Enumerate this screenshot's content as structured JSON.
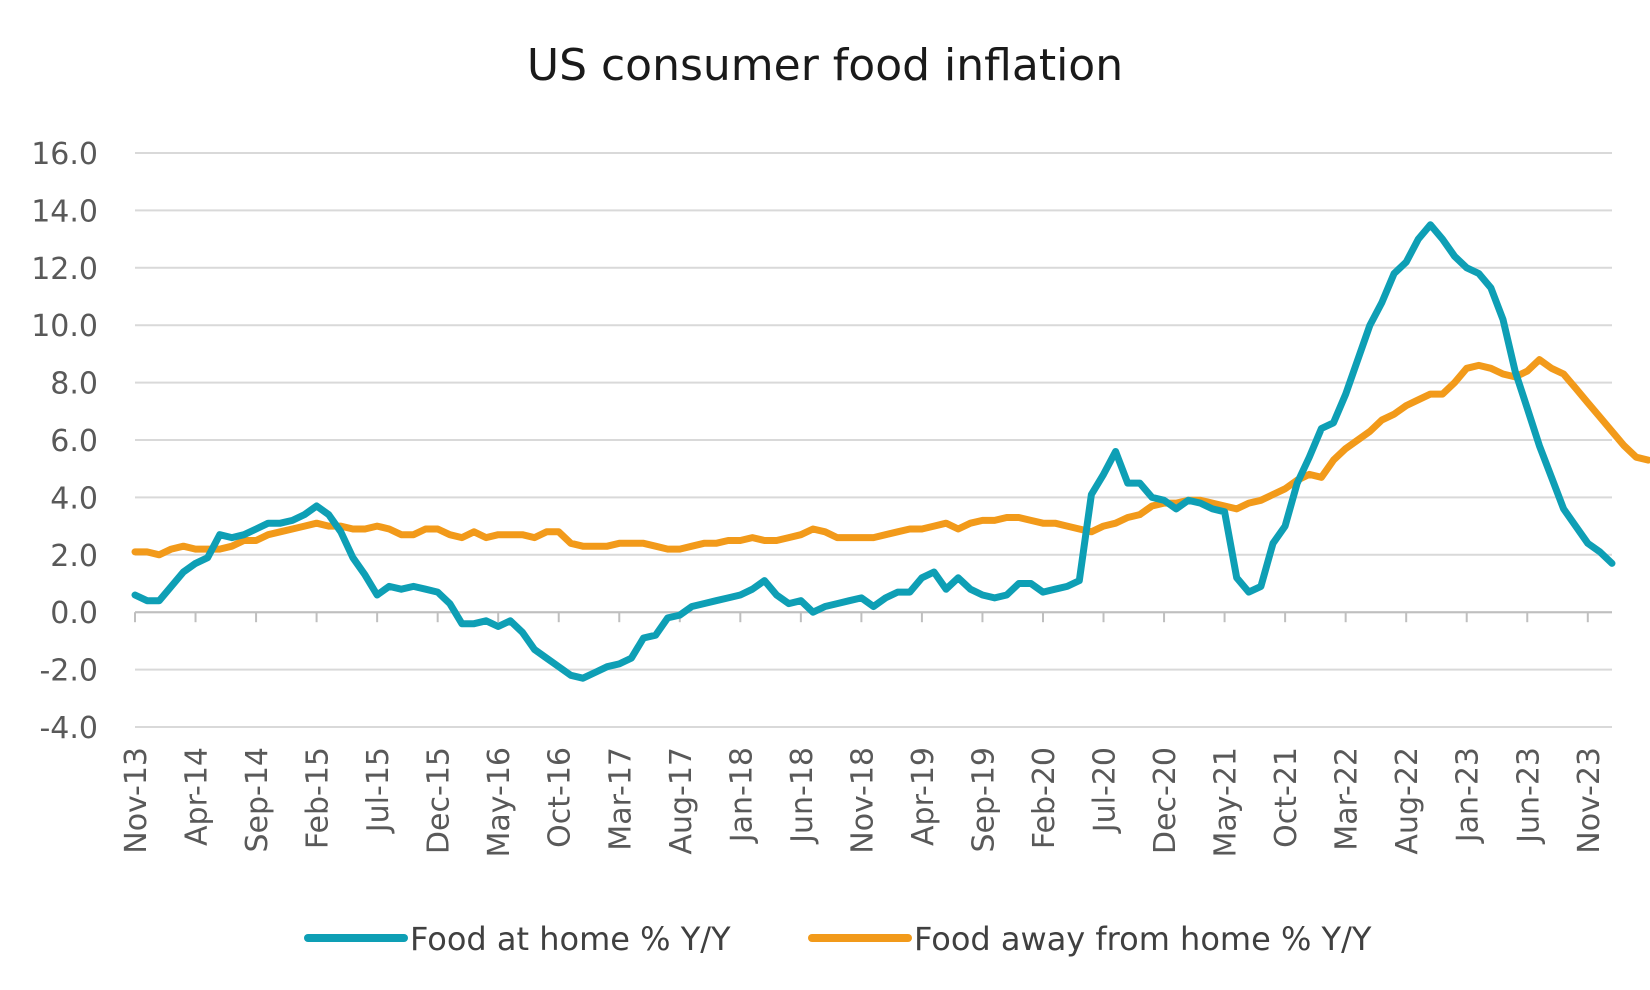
{
  "chart_data": {
    "type": "line",
    "title": "US consumer food inflation",
    "xlabel": "",
    "ylabel": "",
    "ylim": [
      -4.0,
      16.0
    ],
    "y_ticks": [
      "16.0",
      "14.0",
      "12.0",
      "10.0",
      "8.0",
      "6.0",
      "4.0",
      "2.0",
      "0.0",
      "-2.0",
      "-4.0"
    ],
    "x_tick_labels": [
      "Nov-13",
      "Apr-14",
      "Sep-14",
      "Feb-15",
      "Jul-15",
      "Dec-15",
      "May-16",
      "Oct-16",
      "Mar-17",
      "Aug-17",
      "Jan-18",
      "Jun-18",
      "Nov-18",
      "Apr-19",
      "Sep-19",
      "Feb-20",
      "Jul-20",
      "Dec-20",
      "May-21",
      "Oct-21",
      "Mar-22",
      "Aug-22",
      "Jan-23",
      "Jun-23",
      "Nov-23"
    ],
    "x_start": "Nov-13",
    "x_end": "Nov-23",
    "grid": "horizontal",
    "legend_position": "bottom",
    "series": [
      {
        "name": "Food at home % Y/Y",
        "color": "#0e9fb5",
        "values": [
          0.6,
          0.4,
          0.4,
          0.9,
          1.4,
          1.7,
          1.9,
          2.7,
          2.6,
          2.7,
          2.9,
          3.1,
          3.1,
          3.2,
          3.4,
          3.7,
          3.4,
          2.8,
          1.9,
          1.3,
          0.6,
          0.9,
          0.8,
          0.9,
          0.8,
          0.7,
          0.3,
          -0.4,
          -0.4,
          -0.3,
          -0.5,
          -0.3,
          -0.7,
          -1.3,
          -1.6,
          -1.9,
          -2.2,
          -2.3,
          -2.1,
          -1.9,
          -1.8,
          -1.6,
          -0.9,
          -0.8,
          -0.2,
          -0.1,
          0.2,
          0.3,
          0.4,
          0.5,
          0.6,
          0.8,
          1.1,
          0.6,
          0.3,
          0.4,
          0.0,
          0.2,
          0.3,
          0.4,
          0.5,
          0.2,
          0.5,
          0.7,
          0.7,
          1.2,
          1.4,
          0.8,
          1.2,
          0.8,
          0.6,
          0.5,
          0.6,
          1.0,
          1.0,
          0.7,
          0.8,
          0.9,
          1.1,
          4.1,
          4.8,
          5.6,
          4.5,
          4.5,
          4.0,
          3.9,
          3.6,
          3.9,
          3.8,
          3.6,
          3.5,
          1.2,
          0.7,
          0.9,
          2.4,
          3.0,
          4.5,
          5.4,
          6.4,
          6.6,
          7.6,
          8.8,
          10.0,
          10.8,
          11.8,
          12.2,
          13.0,
          13.5,
          13.0,
          12.4,
          12.0,
          11.8,
          11.3,
          10.2,
          8.4,
          7.1,
          5.8,
          4.7,
          3.6,
          3.0,
          2.4,
          2.1,
          1.7
        ]
      },
      {
        "name": "Food away from home % Y/Y",
        "color": "#f29a1a",
        "values": [
          2.1,
          2.1,
          2.0,
          2.2,
          2.3,
          2.2,
          2.2,
          2.2,
          2.3,
          2.5,
          2.5,
          2.7,
          2.8,
          2.9,
          3.0,
          3.1,
          3.0,
          3.0,
          2.9,
          2.9,
          3.0,
          2.9,
          2.7,
          2.7,
          2.9,
          2.9,
          2.7,
          2.6,
          2.8,
          2.6,
          2.7,
          2.7,
          2.7,
          2.6,
          2.8,
          2.8,
          2.4,
          2.3,
          2.3,
          2.3,
          2.4,
          2.4,
          2.4,
          2.3,
          2.2,
          2.2,
          2.3,
          2.4,
          2.4,
          2.5,
          2.5,
          2.6,
          2.5,
          2.5,
          2.6,
          2.7,
          2.9,
          2.8,
          2.6,
          2.6,
          2.6,
          2.6,
          2.7,
          2.8,
          2.9,
          2.9,
          3.0,
          3.1,
          2.9,
          3.1,
          3.2,
          3.2,
          3.3,
          3.3,
          3.2,
          3.1,
          3.1,
          3.0,
          2.9,
          2.8,
          3.0,
          3.1,
          3.3,
          3.4,
          3.7,
          3.8,
          3.8,
          3.9,
          3.9,
          3.8,
          3.7,
          3.6,
          3.8,
          3.9,
          4.1,
          4.3,
          4.6,
          4.8,
          4.7,
          5.3,
          5.7,
          6.0,
          6.3,
          6.7,
          6.9,
          7.2,
          7.4,
          7.6,
          7.6,
          8.0,
          8.5,
          8.6,
          8.5,
          8.3,
          8.2,
          8.4,
          8.8,
          8.5,
          8.3,
          7.8,
          7.3,
          6.8,
          6.3,
          5.8,
          5.4,
          5.3
        ]
      }
    ]
  }
}
